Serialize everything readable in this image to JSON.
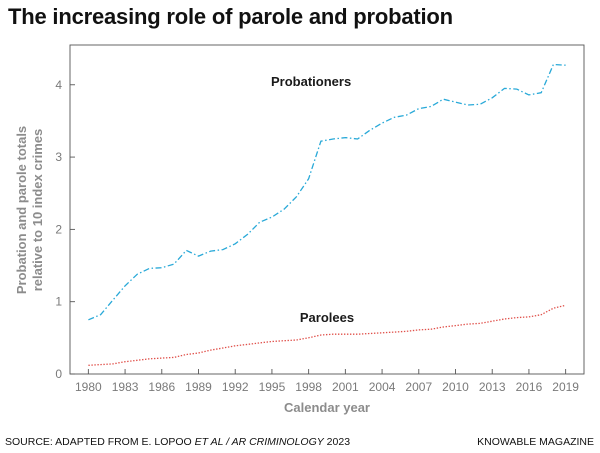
{
  "chart_data": {
    "type": "line",
    "title": "The increasing role of parole and probation",
    "xlabel": "Calendar year",
    "ylabel": [
      "Probation and parole totals",
      "relative to 10 index crimes"
    ],
    "xlim": [
      1978.5,
      2020.5
    ],
    "ylim": [
      0,
      4.55
    ],
    "x_ticks": [
      1980,
      1983,
      1986,
      1989,
      1992,
      1995,
      1998,
      2001,
      2004,
      2007,
      2010,
      2013,
      2016,
      2019
    ],
    "y_ticks": [
      0,
      1,
      2,
      3,
      4
    ],
    "grid": false,
    "legend": "none",
    "series": [
      {
        "name": "Probationers",
        "color": "#29a9d8",
        "dash": "dash-dot",
        "x": [
          1980,
          1981,
          1982,
          1983,
          1984,
          1985,
          1986,
          1987,
          1988,
          1989,
          1990,
          1991,
          1992,
          1993,
          1994,
          1995,
          1996,
          1997,
          1998,
          1999,
          2000,
          2001,
          2002,
          2003,
          2004,
          2005,
          2006,
          2007,
          2008,
          2009,
          2010,
          2011,
          2012,
          2013,
          2014,
          2015,
          2016,
          2017,
          2018,
          2019
        ],
        "values": [
          0.75,
          0.82,
          1.02,
          1.22,
          1.38,
          1.46,
          1.47,
          1.52,
          1.71,
          1.63,
          1.7,
          1.72,
          1.8,
          1.93,
          2.1,
          2.17,
          2.28,
          2.45,
          2.7,
          3.22,
          3.25,
          3.27,
          3.25,
          3.37,
          3.47,
          3.55,
          3.58,
          3.67,
          3.7,
          3.8,
          3.76,
          3.72,
          3.73,
          3.82,
          3.95,
          3.94,
          3.86,
          3.89,
          4.28,
          4.27
        ]
      },
      {
        "name": "Parolees",
        "color": "#e0504a",
        "dash": "dotted",
        "x": [
          1980,
          1981,
          1982,
          1983,
          1984,
          1985,
          1986,
          1987,
          1988,
          1989,
          1990,
          1991,
          1992,
          1993,
          1994,
          1995,
          1996,
          1997,
          1998,
          1999,
          2000,
          2001,
          2002,
          2003,
          2004,
          2005,
          2006,
          2007,
          2008,
          2009,
          2010,
          2011,
          2012,
          2013,
          2014,
          2015,
          2016,
          2017,
          2018,
          2019
        ],
        "values": [
          0.12,
          0.13,
          0.14,
          0.17,
          0.19,
          0.21,
          0.22,
          0.23,
          0.27,
          0.29,
          0.33,
          0.36,
          0.39,
          0.41,
          0.43,
          0.45,
          0.46,
          0.47,
          0.5,
          0.54,
          0.55,
          0.55,
          0.55,
          0.56,
          0.57,
          0.58,
          0.59,
          0.61,
          0.62,
          0.65,
          0.67,
          0.69,
          0.7,
          0.73,
          0.76,
          0.78,
          0.79,
          0.82,
          0.91,
          0.95
        ]
      }
    ],
    "annotations": [
      {
        "text": "Probationers",
        "x": 1998.2,
        "y": 3.98
      },
      {
        "text": "Parolees",
        "x": 1999.5,
        "y": 0.72
      }
    ]
  },
  "footer": {
    "source_prefix": "SOURCE: ADAPTED FROM E. LOPOO ",
    "source_italic": "ET AL / AR CRIMINOLOGY",
    "source_suffix": " 2023",
    "credit": "KNOWABLE MAGAZINE"
  }
}
